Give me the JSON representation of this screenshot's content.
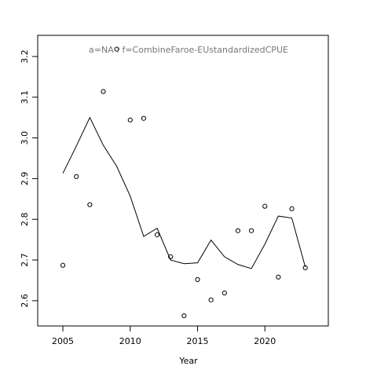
{
  "chart_data": {
    "type": "line",
    "title": "a=NA  :  f=CombineFaroe-EUstandardizedCPUE",
    "x_label": "Year",
    "x": [
      2005,
      2006,
      2007,
      2008,
      2009,
      2010,
      2011,
      2012,
      2013,
      2014,
      2015,
      2016,
      2017,
      2018,
      2019,
      2020,
      2021,
      2022,
      2023
    ],
    "series": [
      {
        "style": "points",
        "color": "#000000",
        "values": [
          2.687,
          2.905,
          2.836,
          3.114,
          3.218,
          3.044,
          3.048,
          2.762,
          2.708,
          2.563,
          2.652,
          2.602,
          2.619,
          2.772,
          2.772,
          2.832,
          2.658,
          2.826,
          2.681
        ]
      },
      {
        "style": "line",
        "color": "#000000",
        "values": [
          2.913,
          2.98,
          3.05,
          2.982,
          2.93,
          2.857,
          2.758,
          2.778,
          2.7,
          2.691,
          2.693,
          2.749,
          2.708,
          2.689,
          2.679,
          2.739,
          2.808,
          2.803,
          2.683
        ]
      }
    ],
    "xlim": [
      2003.13,
      2024.71
    ],
    "xticks": [
      2005,
      2010,
      2015,
      2020
    ],
    "ylim": [
      2.538,
      3.252
    ],
    "yticks": [
      2.6,
      2.7,
      2.8,
      2.9,
      3.0,
      3.1,
      3.2
    ],
    "grid": false
  }
}
